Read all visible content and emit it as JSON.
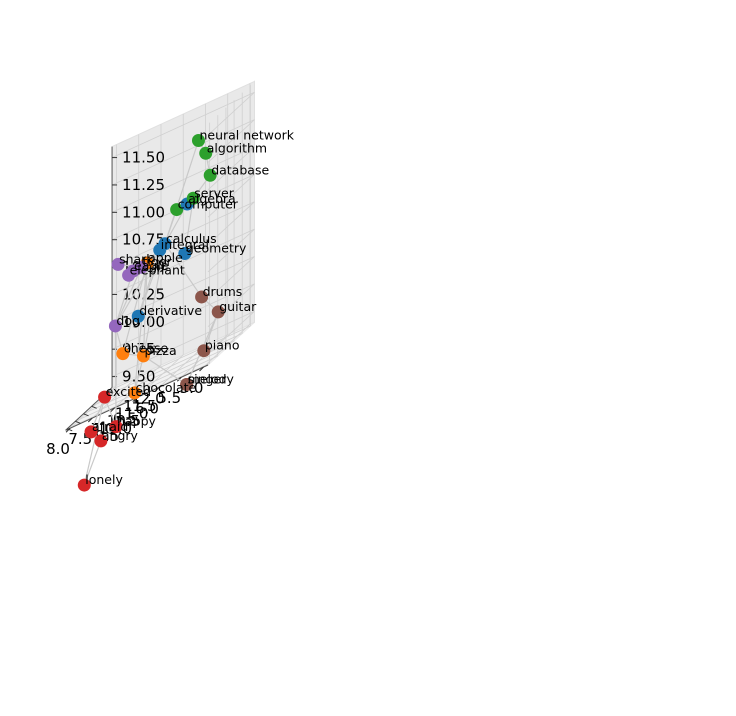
{
  "chart_data": {
    "type": "scatter",
    "projection": "3d",
    "title": "",
    "xlabel": "",
    "ylabel": "",
    "zlabel": "",
    "xlim": [
      4.9,
      8.1
    ],
    "ylim": [
      9.4,
      12.25
    ],
    "zlim": [
      9.4,
      11.6
    ],
    "xticks": [
      "5.0",
      "5.5",
      "6.0",
      "6.5",
      "7.0",
      "7.5",
      "8.0"
    ],
    "yticks": [
      "9.5",
      "10.0",
      "10.5",
      "11.0",
      "11.5",
      "12.0"
    ],
    "zticks": [
      "9.50",
      "9.75",
      "10.00",
      "10.25",
      "10.50",
      "10.75",
      "11.00",
      "11.25",
      "11.50"
    ],
    "grid": true,
    "legend": "none",
    "colors": {
      "blue": "#1f77b4",
      "orange": "#ff7f0e",
      "green": "#2ca02c",
      "red": "#d62728",
      "purple": "#9467bd",
      "brown": "#8c564b"
    },
    "points": [
      {
        "label": "neural network",
        "x": 5.7,
        "y": 11.0,
        "z": 11.38,
        "color": "green"
      },
      {
        "label": "algorithm",
        "x": 5.5,
        "y": 10.9,
        "z": 11.24,
        "color": "green"
      },
      {
        "label": "database",
        "x": 5.4,
        "y": 10.9,
        "z": 11.02,
        "color": "green"
      },
      {
        "label": "computer",
        "x": 6.3,
        "y": 11.3,
        "z": 10.82,
        "color": "green"
      },
      {
        "label": "algebra",
        "x": 6.1,
        "y": 11.4,
        "z": 10.82,
        "color": "blue"
      },
      {
        "label": "server",
        "x": 6.0,
        "y": 11.5,
        "z": 10.84,
        "color": "green"
      },
      {
        "label": "calculus",
        "x": 6.6,
        "y": 11.4,
        "z": 10.55,
        "color": "blue"
      },
      {
        "label": "integral",
        "x": 6.9,
        "y": 11.9,
        "z": 10.48,
        "color": "blue"
      },
      {
        "label": "geometry",
        "x": 6.3,
        "y": 11.8,
        "z": 10.35,
        "color": "blue"
      },
      {
        "label": "apple",
        "x": 7.0,
        "y": 11.4,
        "z": 10.45,
        "color": "orange"
      },
      {
        "label": "tiger",
        "x": 7.2,
        "y": 11.6,
        "z": 10.42,
        "color": "purple"
      },
      {
        "label": "derivative",
        "x": 7.2,
        "y": 11.4,
        "z": 10.0,
        "color": "blue"
      },
      {
        "label": "eagle",
        "x": 7.5,
        "y": 11.9,
        "z": 10.4,
        "color": "purple"
      },
      {
        "label": "elephant",
        "x": 7.6,
        "y": 11.9,
        "z": 10.38,
        "color": "purple"
      },
      {
        "label": "shark",
        "x": 7.8,
        "y": 11.8,
        "z": 10.53,
        "color": "purple"
      },
      {
        "label": "dog",
        "x": 7.75,
        "y": 11.5,
        "z": 10.0,
        "color": "purple"
      },
      {
        "label": "drums",
        "x": 5.3,
        "y": 10.1,
        "z": 10.0,
        "color": "brown"
      },
      {
        "label": "guitar",
        "x": 5.0,
        "y": 10.3,
        "z": 9.78,
        "color": "brown"
      },
      {
        "label": "piano",
        "x": 5.25,
        "y": 10.1,
        "z": 9.5,
        "color": "brown"
      },
      {
        "label": "melody",
        "x": 5.6,
        "y": 10.0,
        "z": 9.27,
        "color": "brown"
      },
      {
        "label": "singer",
        "x": 5.6,
        "y": 10.0,
        "z": 9.27,
        "color": "brown"
      },
      {
        "label": "pizza",
        "x": 6.9,
        "y": 10.9,
        "z": 9.65,
        "color": "orange"
      },
      {
        "label": "cheese",
        "x": 7.4,
        "y": 11.0,
        "z": 9.75,
        "color": "orange"
      },
      {
        "label": "chocolate",
        "x": 7.1,
        "y": 10.9,
        "z": 9.35,
        "color": "orange"
      },
      {
        "label": "excited",
        "x": 7.7,
        "y": 10.7,
        "z": 9.45,
        "color": "red"
      },
      {
        "label": "happy",
        "x": 7.35,
        "y": 10.45,
        "z": 9.15,
        "color": "red"
      },
      {
        "label": "afraid",
        "x": 7.95,
        "y": 10.55,
        "z": 9.2,
        "color": "red"
      },
      {
        "label": "angry",
        "x": 7.6,
        "y": 10.2,
        "z": 9.1,
        "color": "red"
      },
      {
        "label": "lonely",
        "x": 7.9,
        "y": 10.0,
        "z": 8.78,
        "color": "red"
      }
    ],
    "edges": [
      [
        "neural network",
        "algorithm"
      ],
      [
        "neural network",
        "calculus"
      ],
      [
        "algorithm",
        "database"
      ],
      [
        "database",
        "server"
      ],
      [
        "server",
        "computer"
      ],
      [
        "algebra",
        "computer"
      ],
      [
        "algebra",
        "calculus"
      ],
      [
        "server",
        "geometry"
      ],
      [
        "computer",
        "calculus"
      ],
      [
        "calculus",
        "geometry"
      ],
      [
        "calculus",
        "apple"
      ],
      [
        "calculus",
        "derivative"
      ],
      [
        "calculus",
        "integral"
      ],
      [
        "calculus",
        "tiger"
      ],
      [
        "calculus",
        "pizza"
      ],
      [
        "calculus",
        "drums"
      ],
      [
        "integral",
        "derivative"
      ],
      [
        "integral",
        "dog"
      ],
      [
        "apple",
        "pizza"
      ],
      [
        "apple",
        "chocolate"
      ],
      [
        "apple",
        "cheese"
      ],
      [
        "tiger",
        "eagle"
      ],
      [
        "tiger",
        "shark"
      ],
      [
        "tiger",
        "dog"
      ],
      [
        "eagle",
        "elephant"
      ],
      [
        "eagle",
        "dog"
      ],
      [
        "dog",
        "happy"
      ],
      [
        "dog",
        "cheese"
      ],
      [
        "pizza",
        "cheese"
      ],
      [
        "pizza",
        "melody"
      ],
      [
        "pizza",
        "chocolate"
      ],
      [
        "drums",
        "guitar"
      ],
      [
        "guitar",
        "piano"
      ],
      [
        "guitar",
        "melody"
      ],
      [
        "excited",
        "happy"
      ],
      [
        "excited",
        "afraid"
      ],
      [
        "excited",
        "lonely"
      ],
      [
        "happy",
        "angry"
      ],
      [
        "angry",
        "afraid"
      ],
      [
        "angry",
        "lonely"
      ]
    ]
  }
}
